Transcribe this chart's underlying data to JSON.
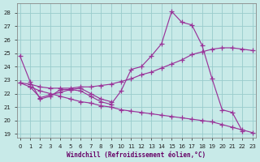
{
  "bg_color": "#c8eae8",
  "grid_color": "#99cccc",
  "line_color": "#993399",
  "xlim": [
    -0.3,
    23.3
  ],
  "ylim": [
    18.7,
    28.7
  ],
  "yticks": [
    19,
    20,
    21,
    22,
    23,
    24,
    25,
    26,
    27,
    28
  ],
  "xticks": [
    0,
    1,
    2,
    3,
    4,
    5,
    6,
    7,
    8,
    9,
    10,
    11,
    12,
    13,
    14,
    15,
    16,
    17,
    18,
    19,
    20,
    21,
    22,
    23
  ],
  "xlabel": "Windchill (Refroidissement éolien,°C)",
  "series": [
    {
      "x": [
        0,
        1,
        2,
        3,
        4,
        5,
        6,
        7,
        8,
        9,
        10,
        11,
        12,
        13,
        14,
        15,
        16,
        17,
        18,
        19,
        20,
        21,
        22
      ],
      "y": [
        24.8,
        22.9,
        21.6,
        21.8,
        22.3,
        22.3,
        22.2,
        21.8,
        21.4,
        21.2,
        22.2,
        23.8,
        24.0,
        24.8,
        25.7,
        28.1,
        27.3,
        27.1,
        25.6,
        23.1,
        20.8,
        20.6,
        19.2
      ]
    },
    {
      "x": [
        0,
        1,
        2,
        3,
        4,
        5,
        6,
        7,
        8,
        9,
        10,
        11,
        12,
        13,
        14,
        15,
        16,
        17,
        18,
        19,
        20,
        21,
        22,
        23
      ],
      "y": [
        22.8,
        22.7,
        22.5,
        22.4,
        22.4,
        22.4,
        22.5,
        22.5,
        22.6,
        22.7,
        22.9,
        23.1,
        23.4,
        23.6,
        23.9,
        24.2,
        24.5,
        24.9,
        25.1,
        25.3,
        25.4,
        25.4,
        25.3,
        25.2
      ]
    },
    {
      "x": [
        0,
        1,
        2,
        3,
        4,
        5,
        6,
        7,
        8,
        9,
        10,
        11,
        12,
        13,
        14,
        15,
        16,
        17,
        18,
        19,
        20,
        21,
        22,
        23
      ],
      "y": [
        22.8,
        22.5,
        22.2,
        22.0,
        21.8,
        21.6,
        21.4,
        21.3,
        21.1,
        21.0,
        20.8,
        20.7,
        20.6,
        20.5,
        20.4,
        20.3,
        20.2,
        20.1,
        20.0,
        19.9,
        19.7,
        19.5,
        19.3,
        19.1
      ]
    },
    {
      "x": [
        1,
        2,
        3,
        4,
        5,
        6,
        7,
        8,
        9
      ],
      "y": [
        22.5,
        21.7,
        21.9,
        22.1,
        22.3,
        22.4,
        22.0,
        21.6,
        21.4
      ]
    }
  ],
  "marker": "+",
  "markersize": 4,
  "markeredge": 0.9,
  "linewidth": 0.85
}
